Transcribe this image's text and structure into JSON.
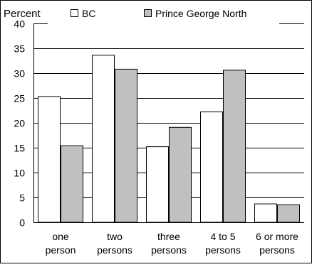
{
  "chart_data": {
    "type": "bar",
    "title": "",
    "ylabel": "Percent",
    "xlabel": "",
    "ylim": [
      0,
      40
    ],
    "yticks": [
      0,
      5,
      10,
      15,
      20,
      25,
      30,
      35,
      40
    ],
    "grid": true,
    "legend_position": "top",
    "categories": [
      [
        "one",
        "person"
      ],
      [
        "two",
        "persons"
      ],
      [
        "three",
        "persons"
      ],
      [
        "4 to 5",
        "persons"
      ],
      [
        "6 or more",
        "persons"
      ]
    ],
    "series": [
      {
        "name": "BC",
        "color": "#ffffff",
        "values": [
          25.3,
          33.6,
          15.2,
          22.2,
          3.7
        ]
      },
      {
        "name": "Prince George North",
        "color": "#c0c0c0",
        "values": [
          15.4,
          30.8,
          19.1,
          30.6,
          3.5
        ]
      }
    ]
  }
}
